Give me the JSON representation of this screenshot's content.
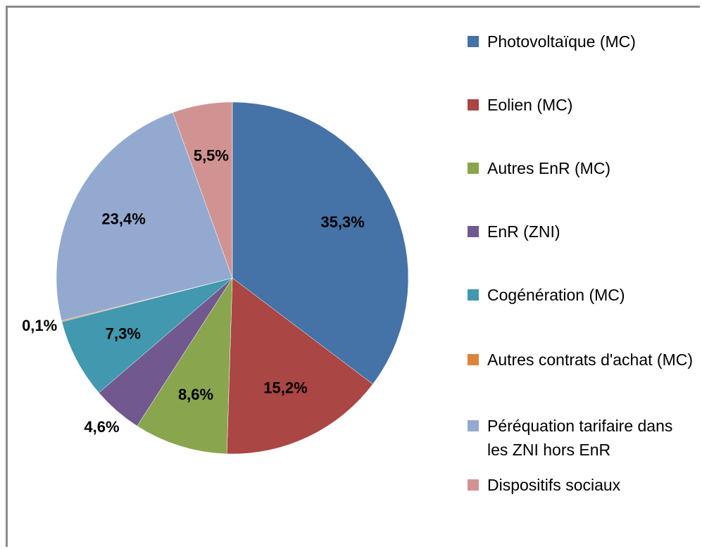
{
  "chart_data": {
    "type": "pie",
    "categories": [
      "Photovoltaïque (MC)",
      "Eolien (MC)",
      "Autres EnR (MC)",
      "EnR (ZNI)",
      "Cogénération (MC)",
      "Autres contrats d'achat (MC)",
      "Péréquation tarifaire dans les ZNI hors EnR",
      "Dispositifs sociaux"
    ],
    "values": [
      35.3,
      15.2,
      8.6,
      4.6,
      7.3,
      0.1,
      23.4,
      5.5
    ],
    "value_labels": [
      "35,3%",
      "15,2%",
      "8,6%",
      "4,6%",
      "7,3%",
      "0,1%",
      "23,4%",
      "5,5%"
    ],
    "colors": [
      "#4572a7",
      "#aa4643",
      "#89a54e",
      "#71588f",
      "#4198af",
      "#db843d",
      "#93a9cf",
      "#d19392"
    ]
  }
}
